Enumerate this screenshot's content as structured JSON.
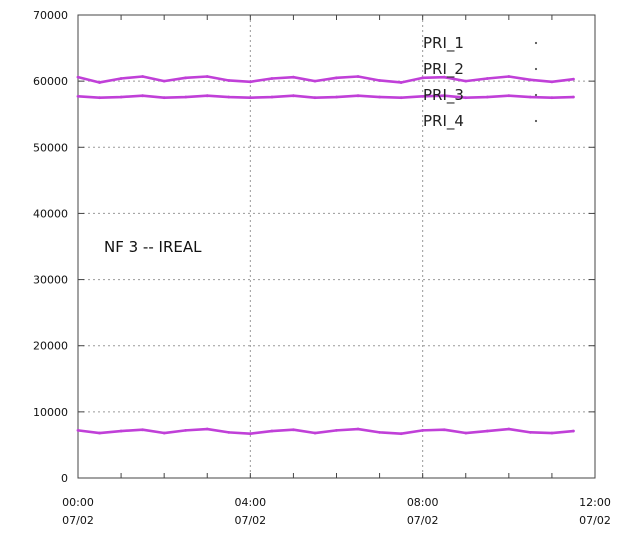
{
  "chart_data": {
    "type": "line",
    "title": "",
    "xlabel": "",
    "ylabel": "",
    "annotation": "NF 3 -- IREAL",
    "ylim": [
      0,
      70000
    ],
    "xlim_hours": [
      0,
      12
    ],
    "grid": true,
    "legend_position": "top-right",
    "y_ticks": [
      "0",
      "10000",
      "20000",
      "30000",
      "40000",
      "50000",
      "60000",
      "70000"
    ],
    "x_ticks": [
      {
        "time": "00:00",
        "date": "07/02"
      },
      {
        "time": "04:00",
        "date": "07/02"
      },
      {
        "time": "08:00",
        "date": "07/02"
      },
      {
        "time": "12:00",
        "date": "07/02"
      }
    ],
    "x_hours": [
      0.0,
      0.5,
      1.0,
      1.5,
      2.0,
      2.5,
      3.0,
      3.5,
      4.0,
      4.5,
      5.0,
      5.5,
      6.0,
      6.5,
      7.0,
      7.5,
      8.0,
      8.5,
      9.0,
      9.5,
      10.0,
      10.5,
      11.0,
      11.5
    ],
    "series": [
      {
        "name": "PRI_1",
        "color": "#c040d8",
        "values": []
      },
      {
        "name": "PRI_2",
        "color": "#c040d8",
        "values": [
          60600,
          59800,
          60400,
          60700,
          60000,
          60500,
          60700,
          60100,
          59900,
          60400,
          60600,
          60000,
          60500,
          60700,
          60100,
          59800,
          60500,
          60600,
          60000,
          60400,
          60700,
          60200,
          59900,
          60300
        ]
      },
      {
        "name": "PRI_3",
        "color": "#c040d8",
        "values": [
          57700,
          57500,
          57600,
          57800,
          57500,
          57600,
          57800,
          57600,
          57500,
          57600,
          57800,
          57500,
          57600,
          57800,
          57600,
          57500,
          57700,
          57800,
          57500,
          57600,
          57800,
          57600,
          57500,
          57600
        ]
      },
      {
        "name": "PRI_4",
        "color": "#c040d8",
        "values": [
          7200,
          6800,
          7100,
          7300,
          6800,
          7200,
          7400,
          6900,
          6700,
          7100,
          7300,
          6800,
          7200,
          7400,
          6900,
          6700,
          7200,
          7300,
          6800,
          7100,
          7400,
          6900,
          6800,
          7100
        ]
      }
    ]
  }
}
